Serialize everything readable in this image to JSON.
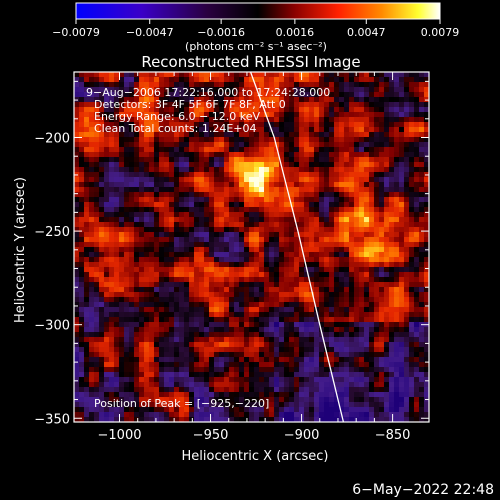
{
  "chart_data": {
    "type": "heatmap",
    "title": "Reconstructed RHESSI Image",
    "xlabel": "Heliocentric X (arcsec)",
    "ylabel": "Heliocentric Y (arcsec)",
    "xlim": [
      -1025,
      -830
    ],
    "ylim": [
      -352,
      -165
    ],
    "x_ticks": [
      {
        "value": -1000,
        "label": "−1000"
      },
      {
        "value": -950,
        "label": "−950"
      },
      {
        "value": -900,
        "label": "−900"
      },
      {
        "value": -850,
        "label": "−850"
      }
    ],
    "y_ticks": [
      {
        "value": -200,
        "label": "−200"
      },
      {
        "value": -250,
        "label": "−250"
      },
      {
        "value": -300,
        "label": "−300"
      },
      {
        "value": -350,
        "label": "−350"
      }
    ],
    "colorbar": {
      "min": -0.0079,
      "max": 0.0079,
      "tick_labels": [
        "−0.0079",
        "−0.0047",
        "−0.0016",
        "0.0016",
        "0.0047",
        "0.0079"
      ],
      "tick_values": [
        -0.0079,
        -0.0047,
        -0.0016,
        0.0016,
        0.0047,
        0.0079
      ],
      "units": "(photons cm⁻² s⁻¹ asec⁻²)",
      "colormap": [
        "#0000ff",
        "#4400aa",
        "#000000",
        "#880000",
        "#ff2200",
        "#ff8800",
        "#ffff00",
        "#ffffff"
      ]
    },
    "annotations": [
      "9−Aug−2006 17:22:16.000 to 17:24:28.000",
      "Detectors: 3F 4F 5F 6F 7F 8F, Att 0",
      "Energy Range: 6.0 − 12.0 keV",
      "Clean      Total counts: 1.24E+04"
    ],
    "peak_label": "Position of Peak = [−925,−220]",
    "peak": {
      "x": -925,
      "y": -220
    },
    "limb_curve": [
      [
        -928,
        -165
      ],
      [
        -915,
        -200
      ],
      [
        -902,
        -250
      ],
      [
        -890,
        -300
      ],
      [
        -877,
        -352
      ]
    ],
    "limb_color": "#ffffff",
    "grid": false,
    "legend": "none"
  },
  "footer": {
    "timestamp": "6−May−2022 22:48"
  }
}
